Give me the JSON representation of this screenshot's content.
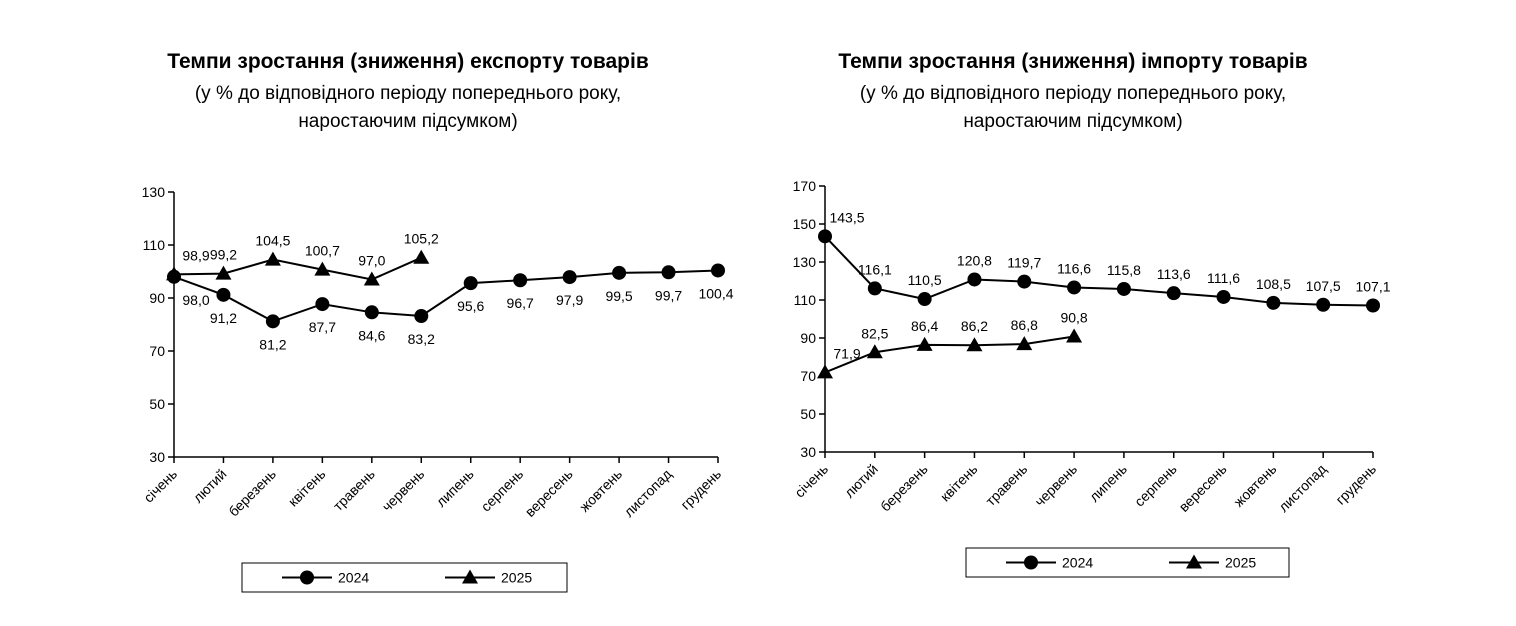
{
  "chart_data": [
    {
      "type": "line",
      "title": "Темпи зростання (зниження) експорту товарів",
      "subtitle": [
        "(у % до відповідного періоду попереднього року,",
        "наростаючим підсумком)"
      ],
      "categories": [
        "січень",
        "лютий",
        "березень",
        "квітень",
        "травень",
        "червень",
        "липень",
        "серпень",
        "вересень",
        "жовтень",
        "листопад",
        "грудень"
      ],
      "series": [
        {
          "name": "2024",
          "color": "#000000",
          "marker": "circle",
          "values": [
            98.0,
            91.2,
            81.2,
            87.7,
            84.6,
            83.2,
            95.6,
            96.7,
            97.9,
            99.5,
            99.7,
            100.4
          ],
          "value_labels": [
            "98,0",
            "91,2",
            "81,2",
            "87,7",
            "84,6",
            "83,2",
            "95,6",
            "96,7",
            "97,9",
            "99,5",
            "99,7",
            "100,4"
          ]
        },
        {
          "name": "2025",
          "color": "#000000",
          "marker": "triangle",
          "values": [
            98.9,
            99.2,
            104.5,
            100.7,
            97.0,
            105.2,
            null,
            null,
            null,
            null,
            null,
            null
          ],
          "value_labels": [
            "98,9",
            "99,2",
            "104,5",
            "100,7",
            "97,0",
            "105,2",
            null,
            null,
            null,
            null,
            null,
            null
          ]
        }
      ],
      "ylim": [
        30,
        130
      ],
      "yticks": [
        30,
        50,
        70,
        90,
        110,
        130
      ]
    },
    {
      "type": "line",
      "title": "Темпи зростання (зниження) імпорту товарів",
      "subtitle": [
        "(у % до відповідного періоду попереднього року,",
        "наростаючим підсумком)"
      ],
      "categories": [
        "січень",
        "лютий",
        "березень",
        "квітень",
        "травень",
        "червень",
        "липень",
        "серпень",
        "вересень",
        "жовтень",
        "листопад",
        "грудень"
      ],
      "series": [
        {
          "name": "2024",
          "color": "#000000",
          "marker": "circle",
          "values": [
            143.5,
            116.1,
            110.5,
            120.8,
            119.7,
            116.6,
            115.8,
            113.6,
            111.6,
            108.5,
            107.5,
            107.1
          ],
          "value_labels": [
            "143,5",
            "116,1",
            "110,5",
            "120,8",
            "119,7",
            "116,6",
            "115,8",
            "113,6",
            "111,6",
            "108,5",
            "107,5",
            "107,1"
          ]
        },
        {
          "name": "2025",
          "color": "#000000",
          "marker": "triangle",
          "values": [
            71.9,
            82.5,
            86.4,
            86.2,
            86.8,
            90.8,
            null,
            null,
            null,
            null,
            null,
            null
          ],
          "value_labels": [
            "71,9",
            "82,5",
            "86,4",
            "86,2",
            "86,8",
            "90,8",
            null,
            null,
            null,
            null,
            null,
            null
          ]
        }
      ],
      "ylim": [
        30,
        170
      ],
      "yticks": [
        30,
        50,
        70,
        90,
        110,
        130,
        150,
        170
      ]
    }
  ]
}
